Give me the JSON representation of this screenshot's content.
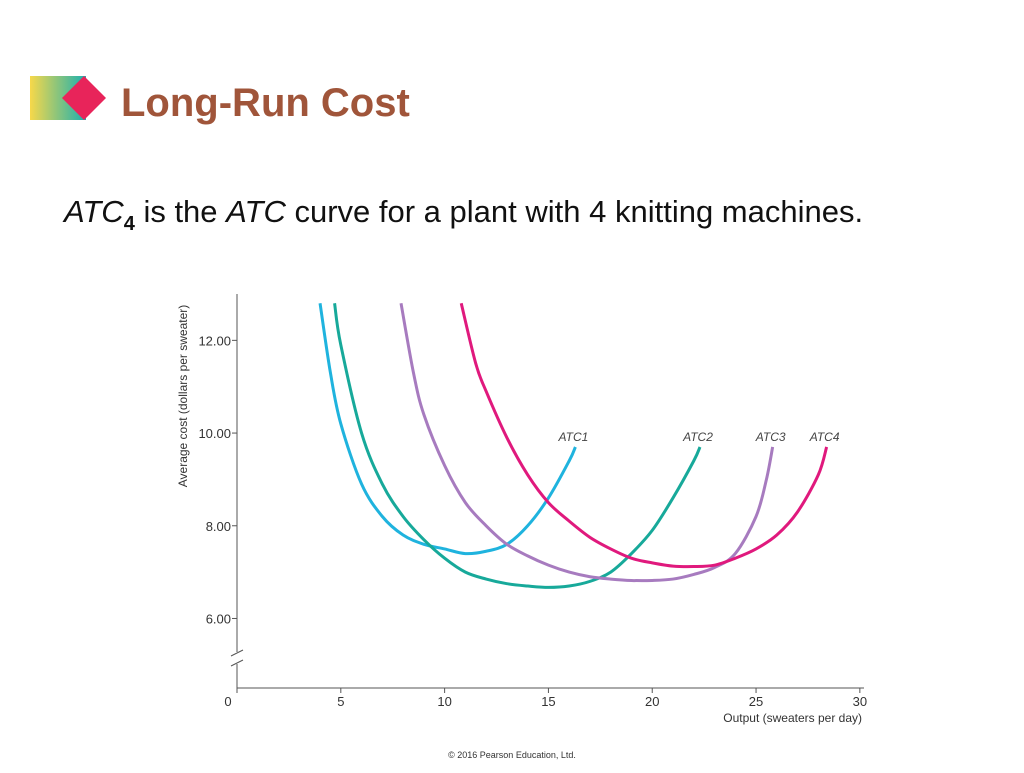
{
  "header": {
    "title": "Long-Run Cost"
  },
  "body": {
    "parts": [
      "ATC",
      "4",
      " is the ",
      "ATC",
      " curve for a plant with 4 knitting machines."
    ]
  },
  "footer": "© 2016 Pearson Education, Ltd.",
  "chart_data": {
    "type": "line",
    "ylabel": "Average cost (dollars per sweater)",
    "xlabel": "Output (sweaters per day)",
    "xlim": [
      0,
      30.2
    ],
    "ylim": [
      4.5,
      13
    ],
    "xticks": [
      0,
      5,
      10,
      15,
      20,
      25,
      30
    ],
    "yticks": [
      {
        "value": 6,
        "label": "6.00"
      },
      {
        "value": 8,
        "label": "8.00"
      },
      {
        "value": 10,
        "label": "10.00"
      },
      {
        "value": 12,
        "label": "12.00"
      }
    ],
    "grid": false,
    "series": [
      {
        "name": "ATC1",
        "color": "#1fb3de",
        "x": [
          4,
          4.5,
          5,
          6,
          7,
          8,
          9,
          10,
          11,
          12,
          13,
          14,
          15,
          16,
          16.3
        ],
        "values": [
          12.8,
          11.3,
          10.2,
          8.9,
          8.2,
          7.8,
          7.6,
          7.5,
          7.4,
          7.45,
          7.6,
          8.0,
          8.6,
          9.4,
          9.7
        ]
      },
      {
        "name": "ATC2",
        "color": "#17a99a",
        "x": [
          4.7,
          5,
          6,
          7,
          8,
          9,
          10,
          11,
          12,
          13,
          14,
          15,
          16,
          17,
          18,
          19,
          20,
          21,
          22,
          22.3
        ],
        "values": [
          12.8,
          11.9,
          10.0,
          8.9,
          8.2,
          7.7,
          7.3,
          7.0,
          6.85,
          6.75,
          6.7,
          6.67,
          6.7,
          6.8,
          7.0,
          7.4,
          7.9,
          8.6,
          9.4,
          9.7
        ]
      },
      {
        "name": "ATC3",
        "color": "#a77bbf",
        "x": [
          7.9,
          8.5,
          9,
          10,
          11,
          12,
          13,
          14,
          15,
          16,
          17,
          18,
          19,
          20,
          21,
          22,
          23,
          24,
          25,
          25.5,
          25.8
        ],
        "values": [
          12.8,
          11.3,
          10.4,
          9.3,
          8.5,
          8.0,
          7.6,
          7.35,
          7.15,
          7.0,
          6.9,
          6.85,
          6.82,
          6.82,
          6.85,
          6.95,
          7.1,
          7.4,
          8.2,
          9.0,
          9.7
        ]
      },
      {
        "name": "ATC4",
        "color": "#e0197d",
        "x": [
          10.8,
          11.5,
          12,
          13,
          14,
          15,
          16,
          17,
          18,
          19,
          20,
          21,
          22,
          23,
          24,
          25,
          26,
          27,
          28,
          28.4
        ],
        "values": [
          12.8,
          11.5,
          10.9,
          9.9,
          9.1,
          8.5,
          8.1,
          7.75,
          7.5,
          7.3,
          7.2,
          7.13,
          7.12,
          7.15,
          7.3,
          7.5,
          7.8,
          8.3,
          9.1,
          9.7
        ]
      }
    ]
  }
}
